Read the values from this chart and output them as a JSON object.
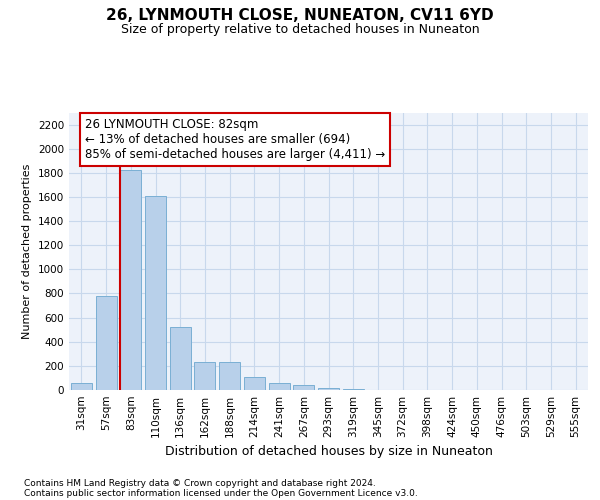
{
  "title": "26, LYNMOUTH CLOSE, NUNEATON, CV11 6YD",
  "subtitle": "Size of property relative to detached houses in Nuneaton",
  "xlabel": "Distribution of detached houses by size in Nuneaton",
  "ylabel": "Number of detached properties",
  "categories": [
    "31sqm",
    "57sqm",
    "83sqm",
    "110sqm",
    "136sqm",
    "162sqm",
    "188sqm",
    "214sqm",
    "241sqm",
    "267sqm",
    "293sqm",
    "319sqm",
    "345sqm",
    "372sqm",
    "398sqm",
    "424sqm",
    "450sqm",
    "476sqm",
    "503sqm",
    "529sqm",
    "555sqm"
  ],
  "values": [
    55,
    780,
    1820,
    1610,
    520,
    235,
    235,
    105,
    55,
    40,
    20,
    5,
    2,
    1,
    1,
    0,
    0,
    0,
    0,
    0,
    0
  ],
  "bar_color": "#b8d0ea",
  "bar_edge_color": "#7aafd4",
  "grid_color": "#c8d8ec",
  "vline_x_index": 2,
  "vline_color": "#cc0000",
  "annotation_line1": "26 LYNMOUTH CLOSE: 82sqm",
  "annotation_line2": "← 13% of detached houses are smaller (694)",
  "annotation_line3": "85% of semi-detached houses are larger (4,411) →",
  "annotation_box_facecolor": "#ffffff",
  "annotation_box_edgecolor": "#cc0000",
  "ylim": [
    0,
    2300
  ],
  "yticks": [
    0,
    200,
    400,
    600,
    800,
    1000,
    1200,
    1400,
    1600,
    1800,
    2000,
    2200
  ],
  "footer_line1": "Contains HM Land Registry data © Crown copyright and database right 2024.",
  "footer_line2": "Contains public sector information licensed under the Open Government Licence v3.0.",
  "plot_bg_color": "#edf2fa",
  "fig_bg_color": "#ffffff",
  "title_fontsize": 11,
  "subtitle_fontsize": 9,
  "ylabel_fontsize": 8,
  "xlabel_fontsize": 9,
  "tick_fontsize": 7.5,
  "footer_fontsize": 6.5,
  "annotation_fontsize": 8.5
}
